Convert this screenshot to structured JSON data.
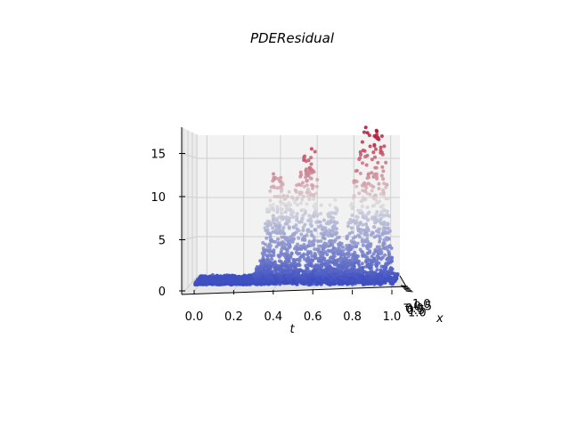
{
  "chart_data": {
    "type": "scatter",
    "projection": "3d",
    "title": "PDEResidual",
    "xlabel": "x",
    "tlabel": "t",
    "zlabel": "",
    "t_ticks": [
      "0.0",
      "0.2",
      "0.4",
      "0.6",
      "0.8",
      "1.0"
    ],
    "x_ticks": [
      "−1.0",
      "−0.5",
      "0.0",
      "0.5",
      "1.0"
    ],
    "z_ticks": [
      "0",
      "5",
      "10",
      "15"
    ],
    "t_range": [
      -0.05,
      1.05
    ],
    "z_range": [
      0,
      18
    ],
    "grid": true,
    "colormap": "coolwarm",
    "colors": {
      "low": "#3b4cc0",
      "mid": "#dddddd",
      "high": "#b40426",
      "pane": "#f2f2f2"
    },
    "envelope": {
      "t": [
        0.0,
        0.1,
        0.2,
        0.3,
        0.35,
        0.4,
        0.45,
        0.5,
        0.55,
        0.6,
        0.65,
        0.7,
        0.75,
        0.8,
        0.85,
        0.9,
        0.95,
        1.0
      ],
      "max_residual": [
        0.3,
        0.3,
        0.3,
        0.4,
        3.5,
        13.0,
        12.0,
        9.0,
        14.5,
        15.5,
        6.0,
        10.0,
        2.5,
        9.5,
        18.0,
        17.5,
        18.0,
        0.5
      ]
    }
  }
}
